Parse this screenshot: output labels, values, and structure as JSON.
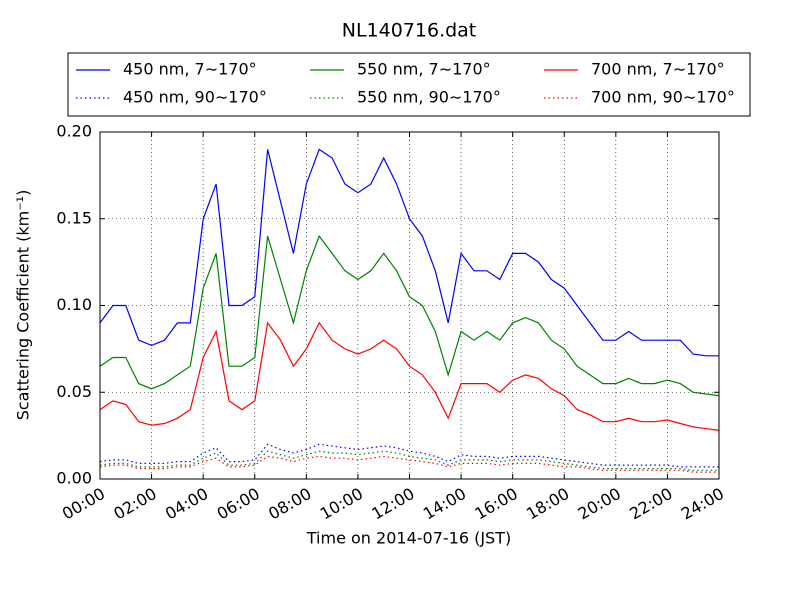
{
  "chart_data": {
    "type": "line",
    "title": "NL140716.dat",
    "x_label": "Time on 2014-07-16 (JST)",
    "y_label": "Scattering Coefficient (km⁻¹)",
    "x": [
      0,
      0.5,
      1,
      1.5,
      2,
      2.5,
      3,
      3.5,
      4,
      4.5,
      5,
      5.5,
      6,
      6.5,
      7,
      7.5,
      8,
      8.5,
      9,
      9.5,
      10,
      10.5,
      11,
      11.5,
      12,
      12.5,
      13,
      13.5,
      14,
      14.5,
      15,
      15.5,
      16,
      16.5,
      17,
      17.5,
      18,
      18.5,
      19,
      19.5,
      20,
      20.5,
      21,
      21.5,
      22,
      22.5,
      23,
      23.5,
      24
    ],
    "series": [
      {
        "name": "450 nm, 7∼170°",
        "color": "#0000ff",
        "linestyle": "solid",
        "values": [
          0.09,
          0.1,
          0.1,
          0.08,
          0.077,
          0.08,
          0.09,
          0.09,
          0.15,
          0.17,
          0.1,
          0.1,
          0.105,
          0.19,
          0.16,
          0.13,
          0.17,
          0.19,
          0.185,
          0.17,
          0.165,
          0.17,
          0.185,
          0.17,
          0.15,
          0.14,
          0.12,
          0.09,
          0.13,
          0.12,
          0.12,
          0.115,
          0.13,
          0.13,
          0.125,
          0.115,
          0.11,
          0.1,
          0.09,
          0.08,
          0.08,
          0.085,
          0.08,
          0.08,
          0.08,
          0.08,
          0.072,
          0.071,
          0.071
        ]
      },
      {
        "name": "450 nm, 90∼170°",
        "color": "#0000ff",
        "linestyle": "dotted",
        "values": [
          0.01,
          0.011,
          0.011,
          0.009,
          0.009,
          0.009,
          0.01,
          0.01,
          0.015,
          0.018,
          0.01,
          0.01,
          0.011,
          0.02,
          0.017,
          0.015,
          0.017,
          0.02,
          0.019,
          0.018,
          0.017,
          0.018,
          0.019,
          0.018,
          0.016,
          0.015,
          0.013,
          0.01,
          0.014,
          0.013,
          0.013,
          0.012,
          0.013,
          0.013,
          0.013,
          0.012,
          0.011,
          0.01,
          0.009,
          0.008,
          0.008,
          0.008,
          0.008,
          0.008,
          0.008,
          0.007,
          0.007,
          0.007,
          0.007
        ]
      },
      {
        "name": "550 nm, 7∼170°",
        "color": "#008000",
        "linestyle": "solid",
        "values": [
          0.065,
          0.07,
          0.07,
          0.055,
          0.052,
          0.055,
          0.06,
          0.065,
          0.11,
          0.13,
          0.065,
          0.065,
          0.07,
          0.14,
          0.115,
          0.09,
          0.12,
          0.14,
          0.13,
          0.12,
          0.115,
          0.12,
          0.13,
          0.12,
          0.105,
          0.1,
          0.085,
          0.06,
          0.085,
          0.08,
          0.085,
          0.08,
          0.09,
          0.093,
          0.09,
          0.08,
          0.075,
          0.065,
          0.06,
          0.055,
          0.055,
          0.058,
          0.055,
          0.055,
          0.057,
          0.055,
          0.05,
          0.049,
          0.048
        ]
      },
      {
        "name": "550 nm, 90∼170°",
        "color": "#008000",
        "linestyle": "dotted",
        "values": [
          0.008,
          0.009,
          0.009,
          0.007,
          0.007,
          0.007,
          0.008,
          0.008,
          0.012,
          0.015,
          0.008,
          0.008,
          0.009,
          0.016,
          0.014,
          0.012,
          0.014,
          0.016,
          0.015,
          0.015,
          0.014,
          0.015,
          0.016,
          0.015,
          0.013,
          0.012,
          0.011,
          0.008,
          0.011,
          0.011,
          0.011,
          0.01,
          0.011,
          0.011,
          0.011,
          0.01,
          0.009,
          0.008,
          0.007,
          0.006,
          0.006,
          0.006,
          0.006,
          0.006,
          0.006,
          0.006,
          0.005,
          0.005,
          0.005
        ]
      },
      {
        "name": "700 nm, 7∼170°",
        "color": "#ff0000",
        "linestyle": "solid",
        "values": [
          0.04,
          0.045,
          0.043,
          0.033,
          0.031,
          0.032,
          0.035,
          0.04,
          0.07,
          0.085,
          0.045,
          0.04,
          0.045,
          0.09,
          0.08,
          0.065,
          0.075,
          0.09,
          0.08,
          0.075,
          0.072,
          0.075,
          0.08,
          0.075,
          0.065,
          0.06,
          0.05,
          0.035,
          0.055,
          0.055,
          0.055,
          0.05,
          0.057,
          0.06,
          0.058,
          0.052,
          0.048,
          0.04,
          0.037,
          0.033,
          0.033,
          0.035,
          0.033,
          0.033,
          0.034,
          0.032,
          0.03,
          0.029,
          0.028
        ]
      },
      {
        "name": "700 nm, 90∼170°",
        "color": "#ff0000",
        "linestyle": "dotted",
        "values": [
          0.007,
          0.008,
          0.008,
          0.006,
          0.006,
          0.006,
          0.007,
          0.007,
          0.01,
          0.012,
          0.007,
          0.007,
          0.008,
          0.013,
          0.012,
          0.01,
          0.012,
          0.013,
          0.012,
          0.012,
          0.011,
          0.012,
          0.013,
          0.012,
          0.011,
          0.01,
          0.009,
          0.007,
          0.009,
          0.009,
          0.009,
          0.008,
          0.009,
          0.009,
          0.009,
          0.008,
          0.007,
          0.007,
          0.006,
          0.005,
          0.005,
          0.005,
          0.005,
          0.005,
          0.005,
          0.005,
          0.004,
          0.004,
          0.004
        ]
      }
    ],
    "xlim": [
      0,
      24
    ],
    "xticks": [
      {
        "value": 0,
        "label": "00:00"
      },
      {
        "value": 2,
        "label": "02:00"
      },
      {
        "value": 4,
        "label": "04:00"
      },
      {
        "value": 6,
        "label": "06:00"
      },
      {
        "value": 8,
        "label": "08:00"
      },
      {
        "value": 10,
        "label": "10:00"
      },
      {
        "value": 12,
        "label": "12:00"
      },
      {
        "value": 14,
        "label": "14:00"
      },
      {
        "value": 16,
        "label": "16:00"
      },
      {
        "value": 18,
        "label": "18:00"
      },
      {
        "value": 20,
        "label": "20:00"
      },
      {
        "value": 22,
        "label": "22:00"
      },
      {
        "value": 24,
        "label": "24:00"
      }
    ],
    "ylim": [
      0,
      0.2
    ],
    "yticks": [
      {
        "value": 0,
        "label": "0.00"
      },
      {
        "value": 0.05,
        "label": "0.05"
      },
      {
        "value": 0.1,
        "label": "0.10"
      },
      {
        "value": 0.15,
        "label": "0.15"
      },
      {
        "value": 0.2,
        "label": "0.20"
      }
    ],
    "grid": true,
    "legend_columns": 3
  }
}
